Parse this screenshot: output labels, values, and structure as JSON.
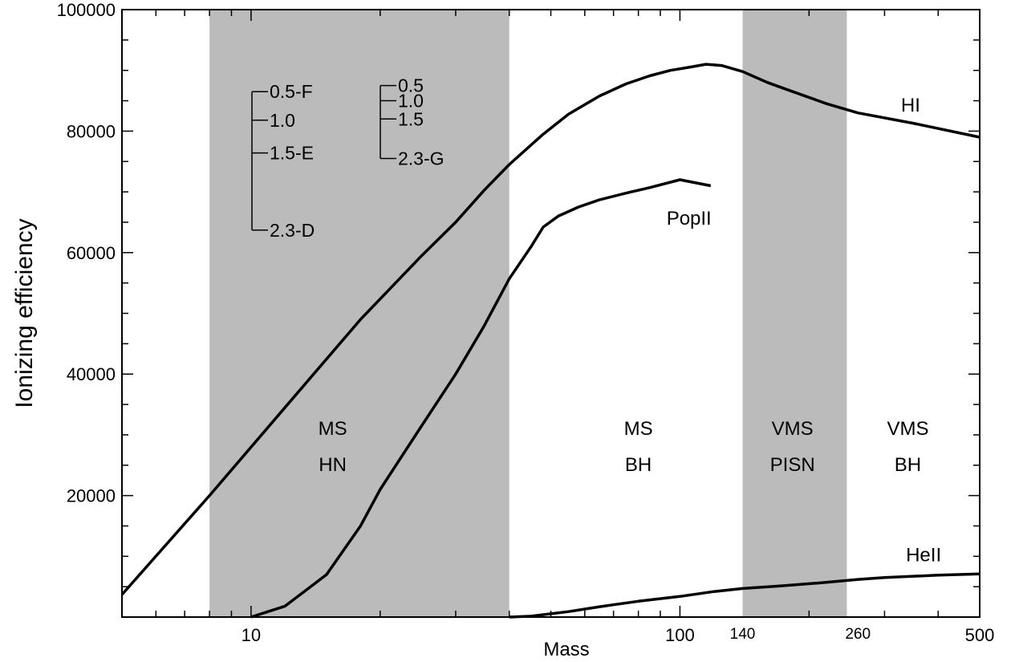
{
  "chart_data": {
    "type": "line",
    "xlabel": "Mass",
    "ylabel": "Ionizing efficiency",
    "xscale": "log",
    "xlim": [
      5,
      500
    ],
    "ylim": [
      0,
      100000
    ],
    "grid": false,
    "x_tick_labels": [
      {
        "value": 10,
        "label": "10"
      },
      {
        "value": 100,
        "label": "100"
      },
      {
        "value": 140,
        "label": "140"
      },
      {
        "value": 260,
        "label": "260"
      },
      {
        "value": 500,
        "label": "500"
      }
    ],
    "y_ticks": [
      20000,
      40000,
      60000,
      80000,
      100000
    ],
    "y_tick_labels": [
      "20000",
      "40000",
      "60000",
      "80000",
      "100000"
    ],
    "shaded_regions": [
      {
        "x": [
          8,
          40
        ],
        "color": "#bbbbbb"
      },
      {
        "x": [
          140,
          245
        ],
        "color": "#bbbbbb"
      }
    ],
    "region_labels": [
      {
        "lines": [
          "MS",
          "HN"
        ],
        "x": 15.5,
        "y": 30000
      },
      {
        "lines": [
          "MS",
          "BH"
        ],
        "x": 80,
        "y": 30000
      },
      {
        "lines": [
          "VMS",
          "PISN"
        ],
        "x": 183,
        "y": 30000
      },
      {
        "lines": [
          "VMS",
          "BH"
        ],
        "x": 340,
        "y": 30000
      }
    ],
    "series": [
      {
        "name": "HI",
        "x": [
          5,
          8,
          12,
          18,
          25,
          30,
          35,
          40,
          48,
          55,
          65,
          75,
          85,
          95,
          105,
          115,
          125,
          140,
          160,
          180,
          220,
          260,
          350,
          500
        ],
        "y": [
          3700,
          20000,
          34500,
          49000,
          59500,
          65000,
          70300,
          74500,
          79500,
          82800,
          85800,
          87800,
          89100,
          90000,
          90500,
          91000,
          90800,
          89800,
          88000,
          86700,
          84500,
          83000,
          81300,
          79000
        ]
      },
      {
        "name": "PopII",
        "x": [
          10,
          12,
          15,
          18,
          20,
          25,
          30,
          35,
          40,
          45,
          48,
          52,
          58,
          65,
          75,
          85,
          100,
          118
        ],
        "y": [
          0,
          1800,
          7000,
          15000,
          21000,
          31500,
          40000,
          48000,
          55700,
          61000,
          64200,
          66000,
          67500,
          68700,
          69800,
          70700,
          72000,
          71000
        ]
      },
      {
        "name": "HeII",
        "x": [
          40,
          45,
          55,
          65,
          80,
          100,
          120,
          140,
          170,
          210,
          260,
          300,
          400,
          500
        ],
        "y": [
          0,
          150,
          900,
          1700,
          2600,
          3400,
          4200,
          4700,
          5100,
          5600,
          6200,
          6500,
          6900,
          7100
        ]
      }
    ],
    "series_label_positions": [
      {
        "name": "HI",
        "x": 345,
        "y": 83200
      },
      {
        "name": "PopII",
        "x": 105,
        "y": 64600
      },
      {
        "name": "HeII",
        "x": 370,
        "y": 9200
      }
    ],
    "legend_groups": [
      {
        "entries": [
          {
            "label": "0.5-F",
            "y": 86500
          },
          {
            "label": "1.0",
            "y": 81800
          },
          {
            "label": "1.5-E",
            "y": 76400
          },
          {
            "label": "2.3-D",
            "y": 63700
          }
        ]
      },
      {
        "entries": [
          {
            "label": "0.5",
            "y": 87500
          },
          {
            "label": "1.0",
            "y": 85000
          },
          {
            "label": "1.5",
            "y": 82000
          },
          {
            "label": "2.3-G",
            "y": 75500
          }
        ]
      }
    ]
  }
}
